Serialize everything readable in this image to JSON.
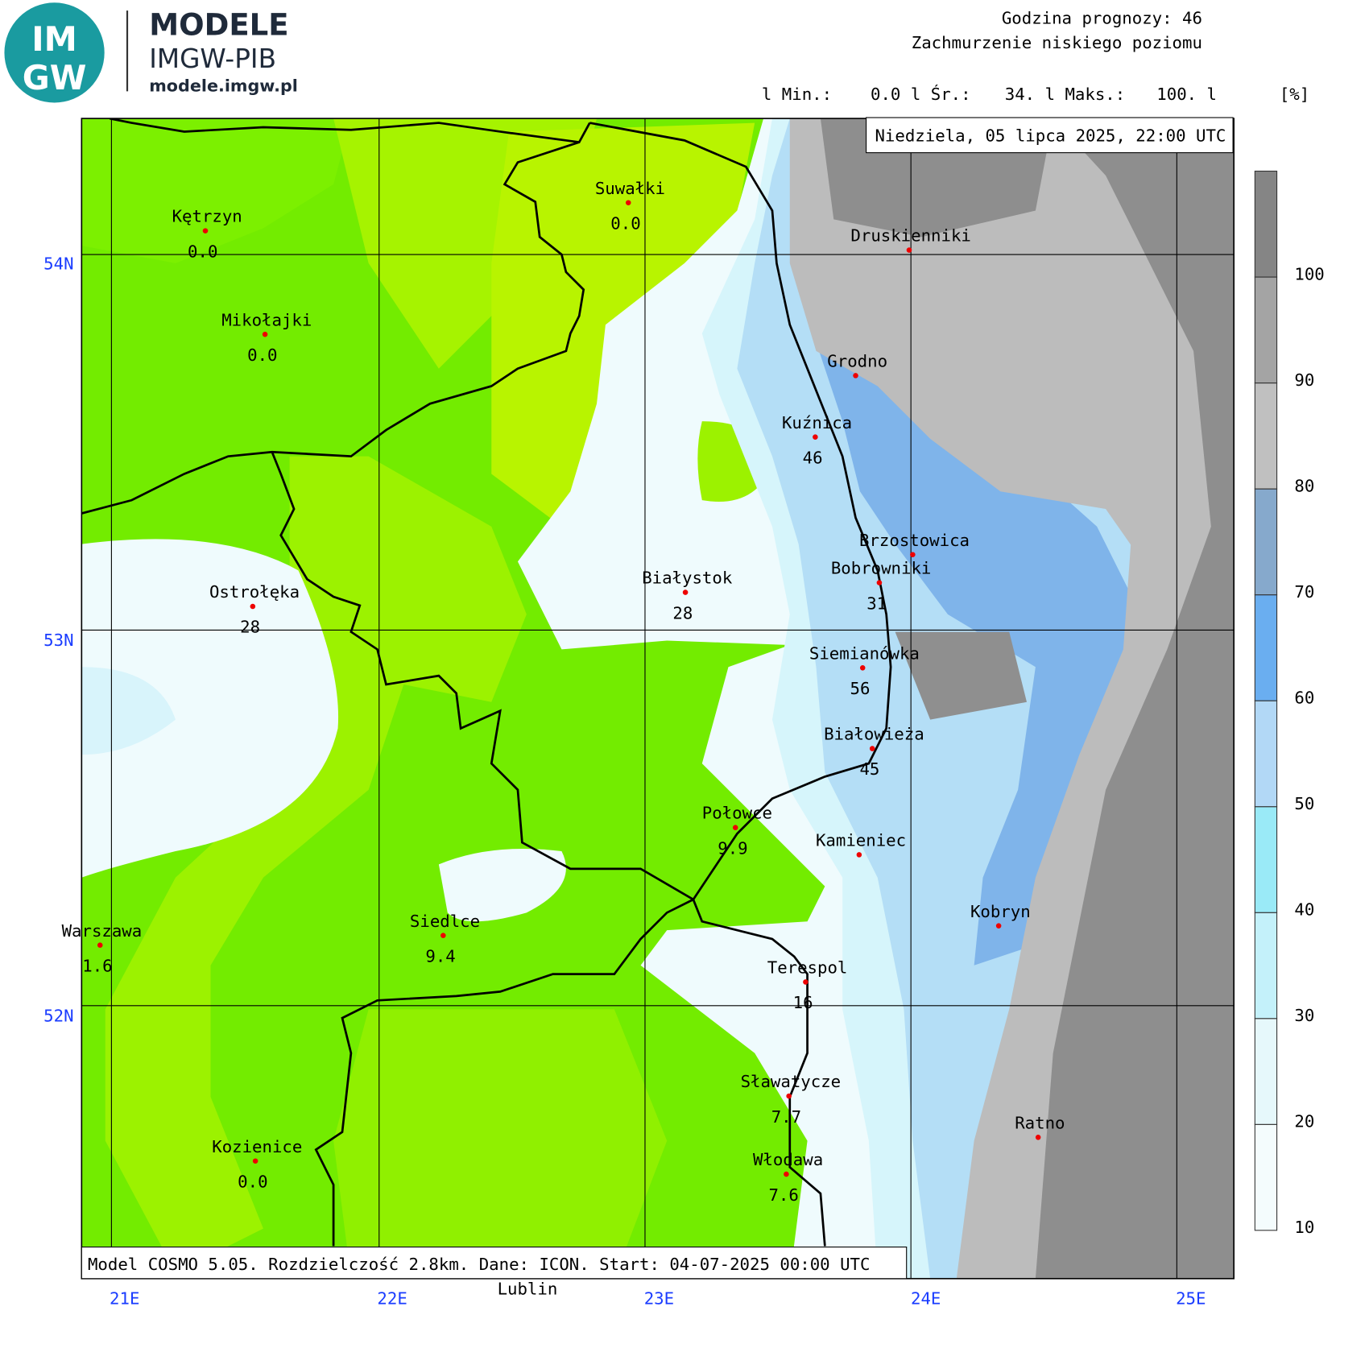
{
  "header": {
    "logo_top": "IM",
    "logo_bottom": "GW",
    "brand": "MODELE",
    "org": "IMGW-PIB",
    "site": "modele.imgw.pl",
    "forecast_hour": "Godzina prognozy: 46",
    "field": "Zachmurzenie niskiego poziomu",
    "stats": [
      "l Min.:",
      "0.0 l Śr.:",
      "34. l Maks.:",
      "100. l"
    ],
    "unit": "[%]"
  },
  "date": "Niedziela, 05 lipca 2025, 22:00 UTC",
  "footer": "Model COSMO 5.05. Rozdzielczość 2.8km. Dane: ICON. Start: 04-07-2025 00:00 UTC",
  "below_map": "Lublin",
  "lon_labels": [
    "21E",
    "22E",
    "23E",
    "24E",
    "25E"
  ],
  "lat_labels": [
    "54N",
    "53N",
    "52N"
  ],
  "legend": [
    "10",
    "20",
    "30",
    "40",
    "50",
    "60",
    "70",
    "80",
    "90",
    "100"
  ],
  "cities": [
    {
      "name": "Kętrzyn",
      "value": "0.0"
    },
    {
      "name": "Suwałki",
      "value": "0.0"
    },
    {
      "name": "Mikołajki",
      "value": "0.0"
    },
    {
      "name": "Druskienniki"
    },
    {
      "name": "Grodno"
    },
    {
      "name": "Kuźnica",
      "value": "46"
    },
    {
      "name": "Brzostowica"
    },
    {
      "name": "Bobrowniki",
      "value": "31"
    },
    {
      "name": "Białystok",
      "value": "28"
    },
    {
      "name": "Ostrołęka",
      "value": "28"
    },
    {
      "name": "Siemianówka",
      "value": "56"
    },
    {
      "name": "Białowieża",
      "value": "45"
    },
    {
      "name": "Połowce",
      "value": "9.9"
    },
    {
      "name": "Kamieniec"
    },
    {
      "name": "Kobryn"
    },
    {
      "name": "Siedlce",
      "value": "9.4"
    },
    {
      "name": "Warszawa",
      "value": "1.6"
    },
    {
      "name": "Terespol",
      "value": "16"
    },
    {
      "name": "Sławatycze",
      "value": "7.7"
    },
    {
      "name": "Ratno"
    },
    {
      "name": "Kozienice",
      "value": "0.0"
    },
    {
      "name": "Włodawa",
      "value": "7.6"
    }
  ]
}
